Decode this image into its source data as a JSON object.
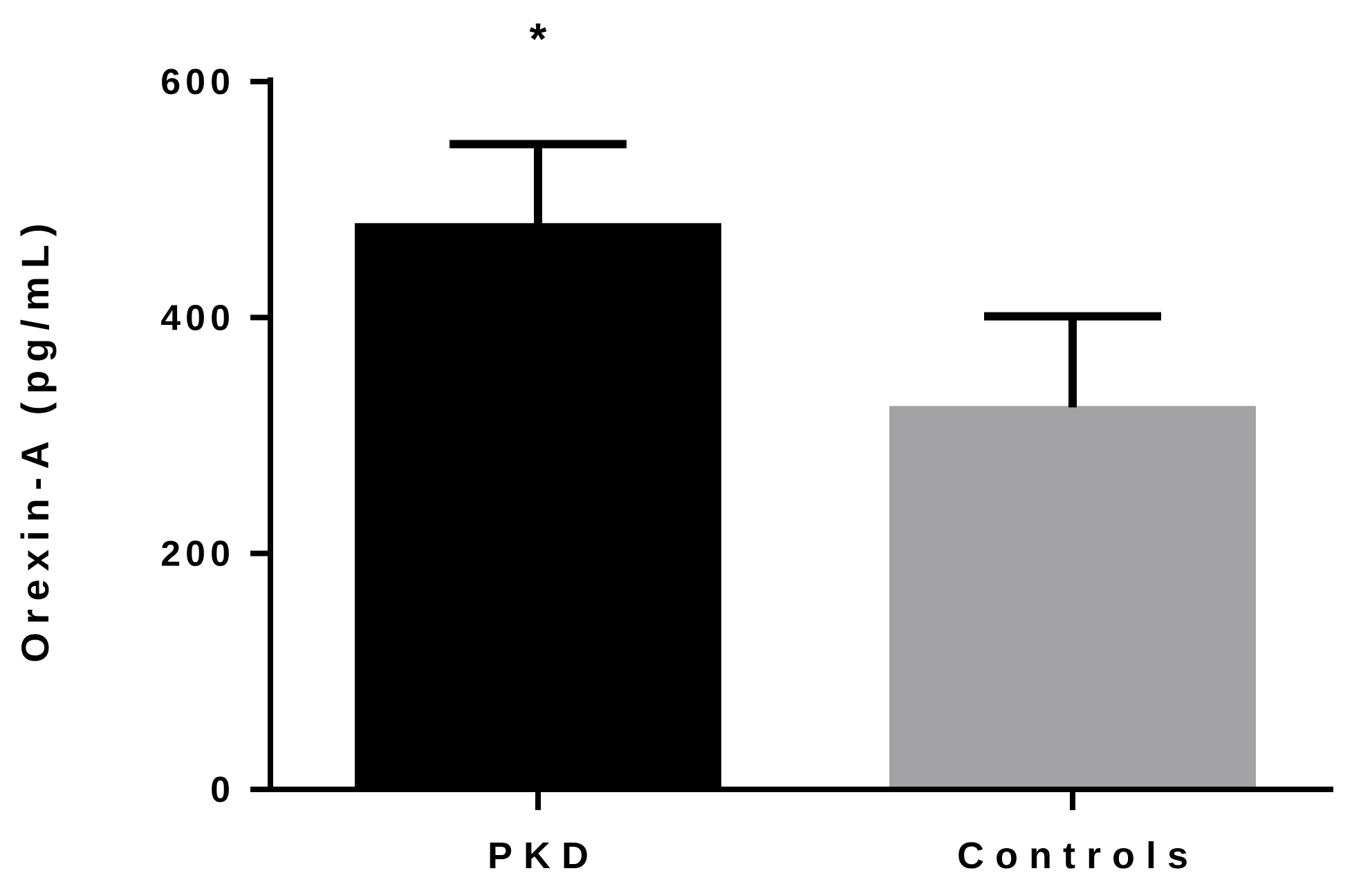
{
  "chart_data": {
    "type": "bar",
    "title": "",
    "xlabel": "",
    "ylabel": "Orexin-A (pg/mL)",
    "ylim": [
      0,
      600
    ],
    "yticks": [
      "0",
      "200",
      "400",
      "600"
    ],
    "categories": [
      "PKD",
      "Controls"
    ],
    "values": [
      480,
      325
    ],
    "error_upper": [
      547,
      401
    ],
    "colors": [
      "#000000",
      "#a3a3a6"
    ],
    "annotations": [
      {
        "category": "PKD",
        "text": "*"
      }
    ],
    "grid": false,
    "legend": "none"
  }
}
